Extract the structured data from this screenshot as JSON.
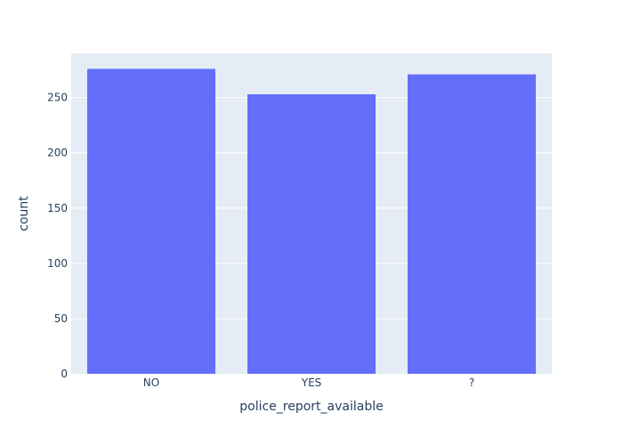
{
  "chart_data": {
    "type": "bar",
    "categories": [
      "NO",
      "YES",
      "?"
    ],
    "values": [
      276,
      253,
      271
    ],
    "title": "",
    "xlabel": "police_report_available",
    "ylabel": "count",
    "ylim": [
      0,
      290
    ],
    "yticks": [
      0,
      50,
      100,
      150,
      200,
      250
    ],
    "grid": true,
    "colors": {
      "bar": "#636efa",
      "plot_bg": "#e5ecf6",
      "grid": "#ffffff",
      "text": "#2a3f5f"
    }
  }
}
